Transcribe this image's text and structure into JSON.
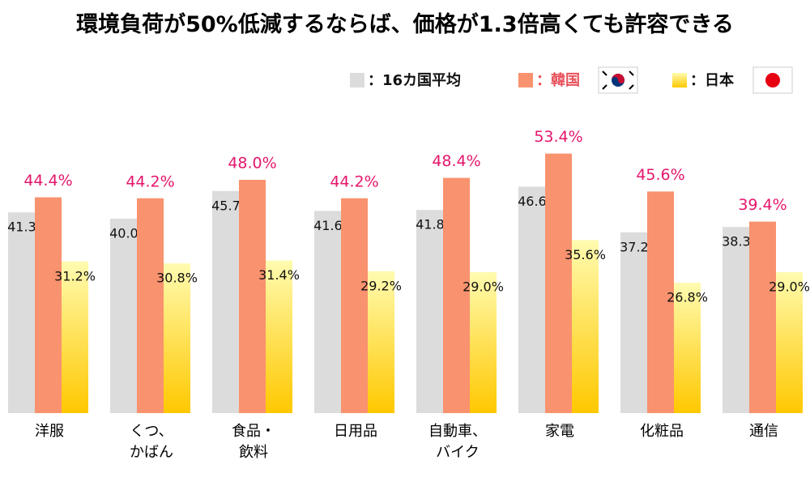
{
  "chart_data": {
    "type": "bar",
    "title": "環境負荷が50%低減するならば、価格が1.3倍高くても許容できる",
    "categories": [
      "洋服",
      "くつ、\nかばん",
      "食品・\n飲料",
      "日用品",
      "自動車、\nバイク",
      "家電",
      "化粧品",
      "通信"
    ],
    "series": [
      {
        "name": "：16カ国平均",
        "color": "#dcdcdc",
        "values": [
          41.3,
          40.0,
          45.7,
          41.6,
          41.8,
          46.6,
          37.2,
          38.3
        ],
        "value_labels": [
          "41.3%",
          "40.0%",
          "45.7%",
          "41.6%",
          "41.8%",
          "46.6%",
          "37.2%",
          "38.3%"
        ]
      },
      {
        "name": "：韓国",
        "color": "#f9926e",
        "values": [
          44.4,
          44.2,
          48.0,
          44.2,
          48.4,
          53.4,
          45.6,
          39.4
        ],
        "value_labels": [
          "44.4%",
          "44.2%",
          "48.0%",
          "44.2%",
          "48.4%",
          "53.4%",
          "45.6%",
          "39.4%"
        ]
      },
      {
        "name": "：日本",
        "color": "#ffc800",
        "values": [
          31.2,
          30.8,
          31.4,
          29.2,
          29.0,
          35.6,
          26.8,
          29.0
        ],
        "value_labels": [
          "31.2%",
          "30.8%",
          "31.4%",
          "29.2%",
          "29.0%",
          "35.6%",
          "26.8%",
          "29.0%"
        ]
      }
    ],
    "ylim": [
      0,
      55
    ]
  }
}
